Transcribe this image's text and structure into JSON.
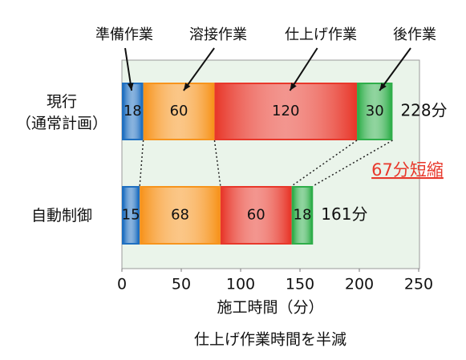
{
  "chart_data": {
    "type": "stacked-bar-horizontal",
    "categories": [
      "現行\n（通常計画）",
      "自動制御"
    ],
    "series": [
      {
        "name": "準備作業",
        "color": "#1f6fc0",
        "values": [
          18,
          15
        ]
      },
      {
        "name": "溶接作業",
        "color": "#f7941d",
        "values": [
          60,
          68
        ]
      },
      {
        "name": "仕上げ作業",
        "color": "#e8382b",
        "values": [
          120,
          60
        ]
      },
      {
        "name": "後作業",
        "color": "#2fae4a",
        "values": [
          30,
          18
        ]
      }
    ],
    "totals": {
      "values": [
        228,
        161
      ],
      "value_labels": [
        "228分",
        "161分"
      ]
    },
    "xlim": [
      0,
      250
    ],
    "xticks": [
      0,
      50,
      100,
      150,
      200,
      250
    ],
    "x_label": "施工時間（分）",
    "annotation": "67分短縮",
    "caption": "仕上げ作業時間を半減",
    "grid": false
  }
}
